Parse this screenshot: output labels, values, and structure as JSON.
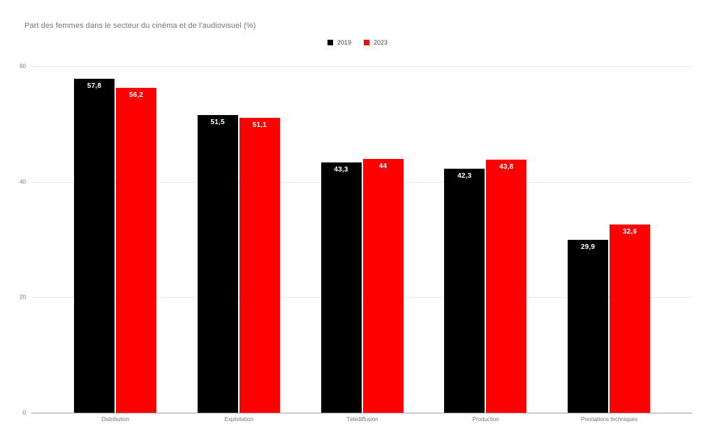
{
  "chart_data": {
    "type": "bar",
    "title": "Part des femmes dans le secteur du cinéma et de l'audiovisuel (%)",
    "categories": [
      "Distribution",
      "Exploitation",
      "Télédiffusion",
      "Production",
      "Prestations techniques"
    ],
    "series": [
      {
        "name": "2019",
        "color": "#000000",
        "values": [
          57.8,
          51.5,
          43.3,
          42.3,
          29.9
        ]
      },
      {
        "name": "2023",
        "color": "#ff0000",
        "values": [
          56.2,
          51.1,
          44,
          43.8,
          32.6
        ]
      }
    ],
    "data_labels": {
      "2019": [
        "57,8",
        "51,5",
        "43,3",
        "42,3",
        "29,9"
      ],
      "2023": [
        "56,2",
        "51,1",
        "44",
        "43,8",
        "32,6"
      ]
    },
    "xlabel": "",
    "ylabel": "",
    "ylim": [
      0,
      60
    ],
    "yticks": [
      0,
      20,
      40,
      60
    ],
    "grid": true,
    "legend_position": "top-center",
    "colors": {
      "title_text": "#757575",
      "axis_text": "#757575",
      "legend_text": "#424242",
      "gridline": "#e6e6e6",
      "baseline": "#9e9e9e",
      "bar_value_text": "#ffffff",
      "background": "#ffffff"
    }
  }
}
